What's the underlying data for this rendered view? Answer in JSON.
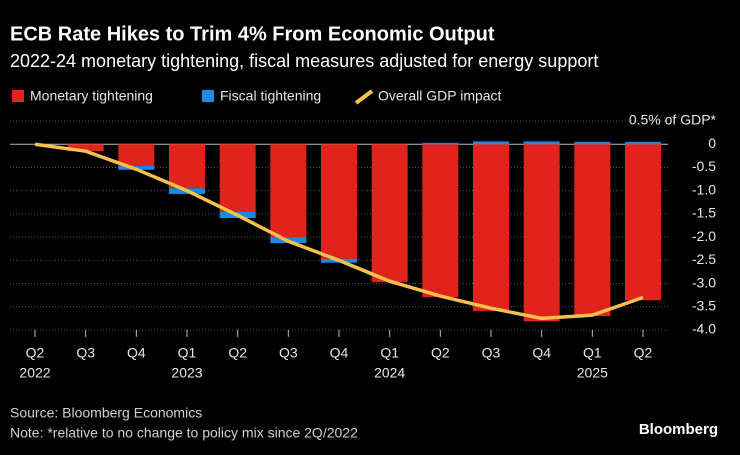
{
  "chart_data": {
    "type": "bar",
    "stacked": true,
    "title": "ECB Rate Hikes to Trim 4% From Economic Output",
    "subtitle": "2022-24 monetary tightening, fiscal measures adjusted for energy support",
    "categories": [
      "Q2",
      "Q3",
      "Q4",
      "Q1",
      "Q2",
      "Q3",
      "Q4",
      "Q1",
      "Q2",
      "Q3",
      "Q4",
      "Q1",
      "Q2"
    ],
    "category_years": [
      "2022",
      null,
      null,
      "2023",
      null,
      null,
      null,
      "2024",
      null,
      null,
      null,
      "2025",
      null
    ],
    "series": [
      {
        "name": "Monetary tightening",
        "color": "#e0241c",
        "type": "bar",
        "values": [
          0,
          -0.15,
          -0.47,
          -0.95,
          -1.46,
          -2.0,
          -2.47,
          -2.97,
          -3.29,
          -3.59,
          -3.81,
          -3.7,
          -3.36
        ]
      },
      {
        "name": "Fiscal tightening",
        "color": "#1e88e5",
        "type": "bar",
        "values": [
          0,
          0,
          -0.08,
          -0.12,
          -0.13,
          -0.13,
          -0.08,
          0,
          0.03,
          0.06,
          0.06,
          0.05,
          0.05
        ]
      },
      {
        "name": "Overall GDP impact",
        "color": "#f7c14b",
        "type": "line",
        "values": [
          0,
          -0.15,
          -0.54,
          -1.0,
          -1.53,
          -2.09,
          -2.5,
          -2.95,
          -3.27,
          -3.53,
          -3.75,
          -3.68,
          -3.3
        ]
      }
    ],
    "ylim": [
      -4.0,
      0.5
    ],
    "yticks": [
      {
        "value": 0.5,
        "label": "0.5% of GDP*"
      },
      0,
      -0.5,
      {
        "value": -1,
        "label": "-1.0"
      },
      -1.5,
      {
        "value": -2,
        "label": "-2.0"
      },
      -2.5,
      {
        "value": -3,
        "label": "-3.0"
      },
      -3.5,
      {
        "value": -4,
        "label": "-4.0"
      }
    ],
    "grid": true,
    "source": "Source: Bloomberg Economics",
    "note": "Note: *relative to no change to policy mix since 2Q/2022",
    "brand": "Bloomberg"
  }
}
